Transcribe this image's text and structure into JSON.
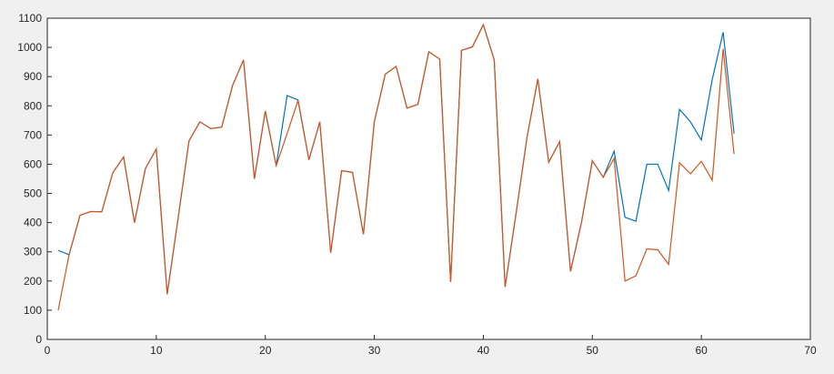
{
  "chart_data": {
    "type": "line",
    "x": [
      1,
      2,
      3,
      4,
      5,
      6,
      7,
      8,
      9,
      10,
      11,
      12,
      13,
      14,
      15,
      16,
      17,
      18,
      19,
      20,
      21,
      22,
      23,
      24,
      25,
      26,
      27,
      28,
      29,
      30,
      31,
      32,
      33,
      34,
      35,
      36,
      37,
      38,
      39,
      40,
      41,
      42,
      43,
      44,
      45,
      46,
      47,
      48,
      49,
      50,
      51,
      52,
      53,
      54,
      55,
      56,
      57,
      58,
      59,
      60,
      61,
      62,
      63
    ],
    "series": [
      {
        "color": "#0072bd",
        "values": [
          305,
          290,
          425,
          438,
          437,
          570,
          625,
          400,
          585,
          652,
          155,
          415,
          680,
          745,
          722,
          727,
          870,
          957,
          550,
          782,
          595,
          835,
          820,
          615,
          745,
          297,
          578,
          572,
          360,
          745,
          908,
          935,
          792,
          805,
          985,
          960,
          197,
          990,
          1002,
          1078,
          957,
          180,
          430,
          690,
          892,
          607,
          677,
          233,
          400,
          612,
          555,
          645,
          418,
          405,
          600,
          600,
          510,
          788,
          745,
          683,
          890,
          1052,
          705
        ]
      },
      {
        "color": "#d95319",
        "values": [
          100,
          290,
          425,
          438,
          437,
          570,
          625,
          400,
          585,
          652,
          155,
          415,
          680,
          745,
          722,
          727,
          870,
          957,
          550,
          782,
          595,
          705,
          818,
          615,
          745,
          297,
          578,
          572,
          360,
          745,
          908,
          935,
          792,
          805,
          985,
          960,
          197,
          990,
          1002,
          1078,
          957,
          180,
          430,
          690,
          892,
          607,
          677,
          233,
          400,
          612,
          555,
          620,
          200,
          218,
          310,
          307,
          257,
          605,
          567,
          610,
          545,
          995,
          635
        ]
      }
    ],
    "xlim": [
      0,
      70
    ],
    "xticks": [
      0,
      10,
      20,
      30,
      40,
      50,
      60,
      70
    ],
    "ylim": [
      0,
      1100
    ],
    "yticks": [
      0,
      100,
      200,
      300,
      400,
      500,
      600,
      700,
      800,
      900,
      1000,
      1100
    ]
  }
}
